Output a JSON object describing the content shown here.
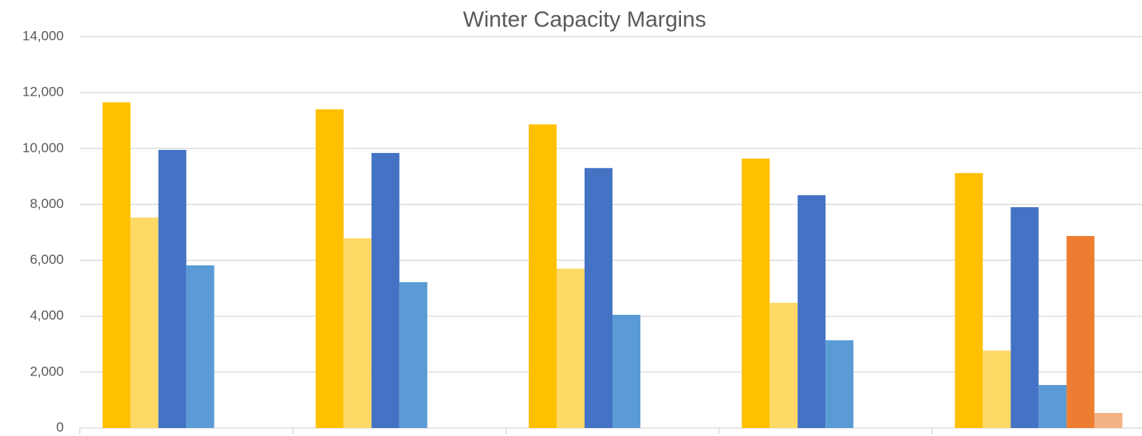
{
  "chart_data": {
    "type": "bar",
    "title": "Winter Capacity Margins",
    "categories": [
      null,
      null,
      null,
      null,
      null
    ],
    "series": [
      {
        "color": "#ffc000",
        "values": [
          11650,
          11400,
          10860,
          9640,
          9120
        ]
      },
      {
        "color": "#ffd966",
        "values": [
          7530,
          6790,
          5700,
          4480,
          2770
        ]
      },
      {
        "color": "#4472c4",
        "values": [
          9950,
          9840,
          9300,
          8330,
          7900
        ]
      },
      {
        "color": "#5b9bd5",
        "values": [
          5820,
          5220,
          4050,
          3140,
          1540
        ]
      },
      {
        "color": "#ed7d31",
        "values": [
          null,
          null,
          null,
          null,
          6870
        ]
      },
      {
        "color": "#f4b183",
        "values": [
          null,
          null,
          null,
          null,
          540
        ]
      }
    ],
    "ylim": [
      0,
      14000
    ],
    "yticks": [
      0,
      {
        "value": 2000,
        "label": "2,000"
      },
      {
        "value": 4000,
        "label": "4,000"
      },
      {
        "value": 6000,
        "label": "6,000"
      },
      {
        "value": 8000,
        "label": "8,000"
      },
      {
        "value": 10000,
        "label": "10,000"
      },
      {
        "value": 12000,
        "label": "12,000"
      },
      {
        "value": 14000,
        "label": "14,000"
      }
    ],
    "grid": true
  }
}
